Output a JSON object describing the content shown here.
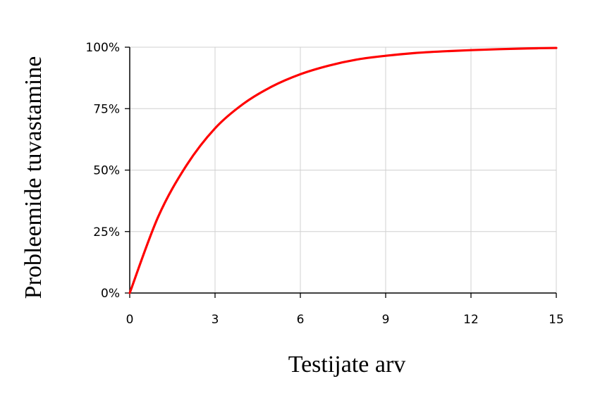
{
  "chart_data": {
    "type": "line",
    "xlabel": "Testijate arv",
    "ylabel": "Probleemide tuvastamine",
    "xlim": [
      0,
      15
    ],
    "ylim": [
      0,
      100
    ],
    "x_ticks": [
      0,
      3,
      6,
      9,
      12,
      15
    ],
    "y_ticks": [
      {
        "value": 0,
        "label": "0%"
      },
      {
        "value": 25,
        "label": "25%"
      },
      {
        "value": 50,
        "label": "50%"
      },
      {
        "value": 75,
        "label": "75%"
      },
      {
        "value": 100,
        "label": "100%"
      }
    ],
    "grid": true,
    "series": [
      {
        "color": "#ff0000",
        "x": [
          0,
          1,
          2,
          3,
          4,
          5,
          6,
          7,
          8,
          9,
          10,
          11,
          12,
          13,
          14,
          15
        ],
        "y": [
          0,
          31,
          52,
          67,
          77,
          84,
          89,
          92.5,
          95,
          96.5,
          97.6,
          98.3,
          98.8,
          99.2,
          99.5,
          99.7
        ]
      }
    ]
  }
}
